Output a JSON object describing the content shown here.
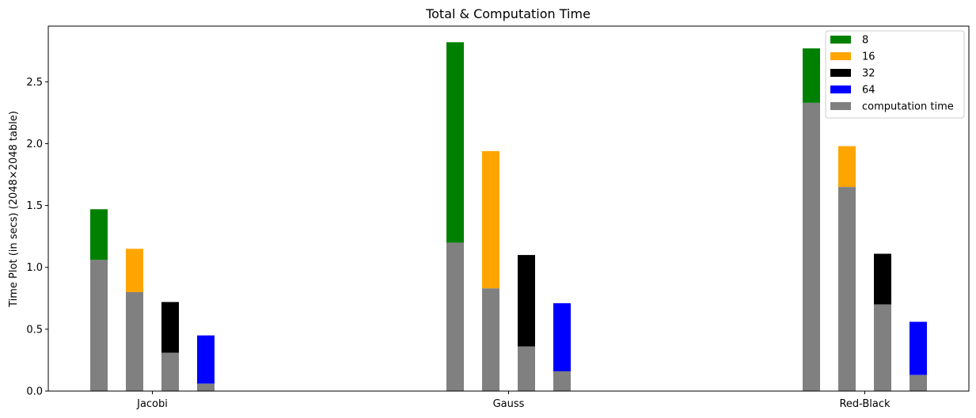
{
  "chart_data": {
    "type": "bar",
    "title": "Total & Computation Time",
    "xlabel": "",
    "ylabel": "Time Plot (in secs) (2048×2048 table)",
    "categories": [
      "Jacobi",
      "Gauss",
      "Red-Black"
    ],
    "ylim": [
      0,
      2.95
    ],
    "yticks": [
      "0.0",
      "0.5",
      "1.0",
      "1.5",
      "2.0",
      "2.5"
    ],
    "grid": false,
    "legend_position": "top-right",
    "series": [
      {
        "name": "8",
        "color": "#008000",
        "total": [
          1.47,
          2.82,
          2.77
        ],
        "computation": [
          1.06,
          1.2,
          2.33
        ]
      },
      {
        "name": "16",
        "color": "#ffa500",
        "total": [
          1.15,
          1.94,
          1.98
        ],
        "computation": [
          0.8,
          0.83,
          1.65
        ]
      },
      {
        "name": "32",
        "color": "#000000",
        "total": [
          0.72,
          1.1,
          1.11
        ],
        "computation": [
          0.31,
          0.36,
          0.7
        ]
      },
      {
        "name": "64",
        "color": "#0000ff",
        "total": [
          0.45,
          0.71,
          0.56
        ],
        "computation": [
          0.06,
          0.16,
          0.13
        ]
      }
    ],
    "computation_legend": {
      "name": "computation time",
      "color": "#808080"
    }
  }
}
